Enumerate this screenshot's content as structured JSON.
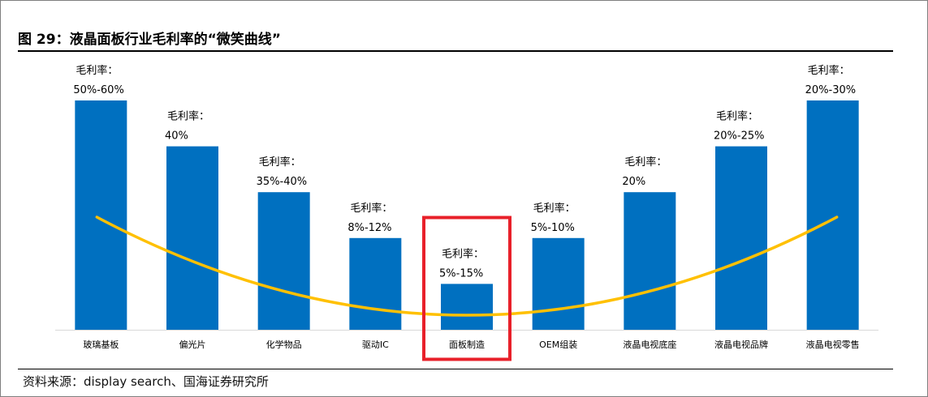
{
  "title": "图 29：液晶面板行业毛利率的“微笑曲线”",
  "source": "资料来源：display search、国海证券研究所",
  "chart_data": {
    "type": "bar",
    "categories": [
      "玻璃基板",
      "偏光片",
      "化学物品",
      "驱动IC",
      "面板制造",
      "OEM组装",
      "液晶电视底座",
      "液晶电视品牌",
      "液晶电视零售"
    ],
    "label_prefix": "毛利率：",
    "range_labels": [
      "50%-60%",
      "40%",
      "35%-40%",
      "8%-12%",
      "5%-15%",
      "5%-10%",
      "20%",
      "20%-25%",
      "20%-30%"
    ],
    "values": [
      100,
      80,
      60,
      40,
      20,
      40,
      60,
      80,
      100
    ],
    "ylim": [
      0,
      100
    ],
    "highlighted_index": 4,
    "colors": {
      "bar": "#0070c0",
      "curve": "#ffc000",
      "highlight": "#e8202a"
    }
  }
}
